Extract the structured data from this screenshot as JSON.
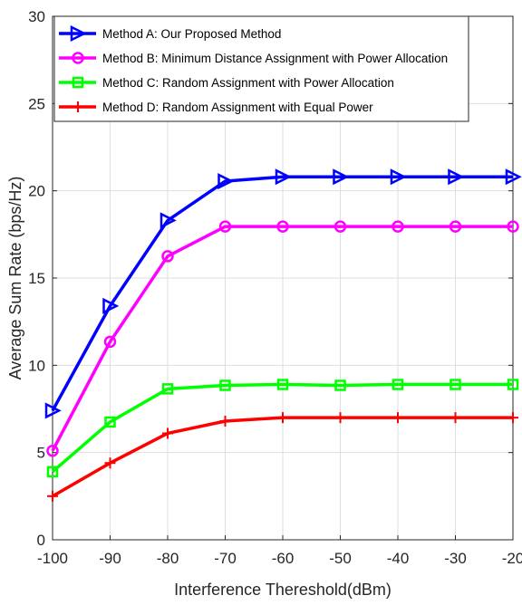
{
  "chart_data": {
    "type": "line",
    "xlabel": "Interference Thereshold(dBm)",
    "ylabel": "Average Sum Rate (bps/Hz)",
    "x": [
      -100,
      -90,
      -80,
      -70,
      -60,
      -50,
      -40,
      -30,
      -20
    ],
    "xlim": [
      -100,
      -20
    ],
    "ylim": [
      0,
      30
    ],
    "xticks": [
      "-100",
      "-90",
      "-80",
      "-70",
      "-60",
      "-50",
      "-40",
      "-30",
      "-20"
    ],
    "yticks": [
      "0",
      "5",
      "10",
      "15",
      "20",
      "25",
      "30"
    ],
    "grid": true,
    "legend_position": "top-left",
    "series": [
      {
        "name": "Method A: Our Proposed Method",
        "color": "#0000ff",
        "marker": "triangle-right",
        "values": [
          7.4,
          13.4,
          18.3,
          20.55,
          20.8,
          20.8,
          20.8,
          20.8,
          20.8
        ]
      },
      {
        "name": "Method B: Minimum Distance Assignment with Power Allocation",
        "color": "#ff00ff",
        "marker": "circle",
        "values": [
          5.1,
          11.35,
          16.25,
          17.95,
          17.95,
          17.95,
          17.95,
          17.95,
          17.95
        ]
      },
      {
        "name": "Method C: Random Assignment with Power Allocation",
        "color": "#00ff00",
        "marker": "square",
        "values": [
          3.9,
          6.75,
          8.65,
          8.85,
          8.9,
          8.85,
          8.9,
          8.9,
          8.9
        ]
      },
      {
        "name": "Method D: Random Assignment with Equal Power",
        "color": "#ff0000",
        "marker": "plus",
        "values": [
          2.5,
          4.4,
          6.1,
          6.8,
          7.0,
          7.0,
          7.0,
          7.0,
          7.0
        ]
      }
    ]
  }
}
